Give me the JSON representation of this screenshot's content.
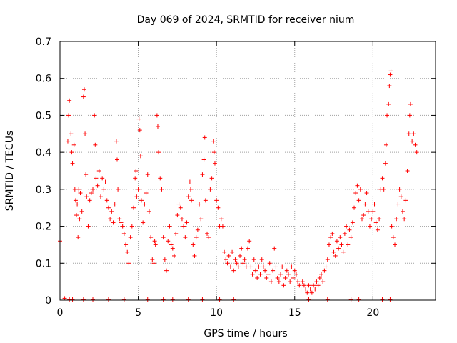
{
  "chart_data": {
    "type": "scatter",
    "title": "Day 069 of 2024, SRMTID for receiver nium",
    "xlabel": "GPS time / hours",
    "ylabel": "SRMTID / TECUs",
    "xlim": [
      0,
      24
    ],
    "ylim": [
      0,
      0.7
    ],
    "xticks": [
      0,
      5,
      10,
      15,
      20
    ],
    "yticks": [
      0,
      0.1,
      0.2,
      0.3,
      0.4,
      0.5,
      0.6,
      0.7
    ],
    "xtick_labels": [
      "0",
      "5",
      "10",
      "15",
      "20"
    ],
    "ytick_labels": [
      "0",
      "0.1",
      "0.2",
      "0.3",
      "0.4",
      "0.5",
      "0.6",
      "0.7"
    ],
    "grid": true,
    "marker": "+",
    "color": "#ff0000",
    "series": [
      {
        "name": "SRMTID",
        "points": [
          [
            0.0,
            0.16
          ],
          [
            0.3,
            0.005
          ],
          [
            0.5,
            0.43
          ],
          [
            0.55,
            0.5
          ],
          [
            0.6,
            0.54
          ],
          [
            0.7,
            0.45
          ],
          [
            0.75,
            0.4
          ],
          [
            0.8,
            0.37
          ],
          [
            0.9,
            0.42
          ],
          [
            0.95,
            0.3
          ],
          [
            1.0,
            0.27
          ],
          [
            1.05,
            0.23
          ],
          [
            1.1,
            0.26
          ],
          [
            1.15,
            0.17
          ],
          [
            1.2,
            0.3
          ],
          [
            1.25,
            0.22
          ],
          [
            1.3,
            0.29
          ],
          [
            1.4,
            0.24
          ],
          [
            1.5,
            0.55
          ],
          [
            1.55,
            0.57
          ],
          [
            1.6,
            0.45
          ],
          [
            1.65,
            0.34
          ],
          [
            1.7,
            0.28
          ],
          [
            1.8,
            0.2
          ],
          [
            1.9,
            0.27
          ],
          [
            2.0,
            0.29
          ],
          [
            2.1,
            0.3
          ],
          [
            2.2,
            0.5
          ],
          [
            2.25,
            0.42
          ],
          [
            2.3,
            0.33
          ],
          [
            2.4,
            0.31
          ],
          [
            2.5,
            0.35
          ],
          [
            2.6,
            0.28
          ],
          [
            2.7,
            0.33
          ],
          [
            2.8,
            0.3
          ],
          [
            2.9,
            0.32
          ],
          [
            3.0,
            0.27
          ],
          [
            3.1,
            0.25
          ],
          [
            3.2,
            0.22
          ],
          [
            3.3,
            0.24
          ],
          [
            3.4,
            0.21
          ],
          [
            3.5,
            0.26
          ],
          [
            3.6,
            0.43
          ],
          [
            3.65,
            0.38
          ],
          [
            3.7,
            0.3
          ],
          [
            3.8,
            0.22
          ],
          [
            3.9,
            0.21
          ],
          [
            4.0,
            0.2
          ],
          [
            4.1,
            0.18
          ],
          [
            4.2,
            0.15
          ],
          [
            4.3,
            0.13
          ],
          [
            4.4,
            0.1
          ],
          [
            4.5,
            0.17
          ],
          [
            4.6,
            0.2
          ],
          [
            4.7,
            0.25
          ],
          [
            4.8,
            0.33
          ],
          [
            4.85,
            0.35
          ],
          [
            4.9,
            0.28
          ],
          [
            5.0,
            0.3
          ],
          [
            5.05,
            0.49
          ],
          [
            5.1,
            0.46
          ],
          [
            5.15,
            0.39
          ],
          [
            5.2,
            0.27
          ],
          [
            5.3,
            0.21
          ],
          [
            5.4,
            0.26
          ],
          [
            5.5,
            0.29
          ],
          [
            5.6,
            0.34
          ],
          [
            5.7,
            0.24
          ],
          [
            5.8,
            0.17
          ],
          [
            5.9,
            0.11
          ],
          [
            6.0,
            0.1
          ],
          [
            6.05,
            0.16
          ],
          [
            6.1,
            0.15
          ],
          [
            6.2,
            0.5
          ],
          [
            6.25,
            0.47
          ],
          [
            6.3,
            0.4
          ],
          [
            6.4,
            0.33
          ],
          [
            6.5,
            0.3
          ],
          [
            6.6,
            0.17
          ],
          [
            6.7,
            0.11
          ],
          [
            6.8,
            0.08
          ],
          [
            6.9,
            0.16
          ],
          [
            7.0,
            0.2
          ],
          [
            7.1,
            0.15
          ],
          [
            7.2,
            0.14
          ],
          [
            7.3,
            0.12
          ],
          [
            7.4,
            0.18
          ],
          [
            7.5,
            0.23
          ],
          [
            7.6,
            0.26
          ],
          [
            7.7,
            0.25
          ],
          [
            7.8,
            0.22
          ],
          [
            7.9,
            0.2
          ],
          [
            8.0,
            0.17
          ],
          [
            8.1,
            0.21
          ],
          [
            8.2,
            0.28
          ],
          [
            8.3,
            0.32
          ],
          [
            8.35,
            0.3
          ],
          [
            8.4,
            0.27
          ],
          [
            8.5,
            0.15
          ],
          [
            8.6,
            0.12
          ],
          [
            8.7,
            0.17
          ],
          [
            8.8,
            0.19
          ],
          [
            8.9,
            0.26
          ],
          [
            9.0,
            0.22
          ],
          [
            9.1,
            0.34
          ],
          [
            9.2,
            0.38
          ],
          [
            9.25,
            0.44
          ],
          [
            9.3,
            0.27
          ],
          [
            9.4,
            0.18
          ],
          [
            9.5,
            0.17
          ],
          [
            9.6,
            0.3
          ],
          [
            9.7,
            0.33
          ],
          [
            9.8,
            0.43
          ],
          [
            9.85,
            0.4
          ],
          [
            9.9,
            0.37
          ],
          [
            10.0,
            0.27
          ],
          [
            10.1,
            0.25
          ],
          [
            10.2,
            0.2
          ],
          [
            10.3,
            0.22
          ],
          [
            10.4,
            0.2
          ],
          [
            10.5,
            0.13
          ],
          [
            10.6,
            0.11
          ],
          [
            10.7,
            0.1
          ],
          [
            10.8,
            0.12
          ],
          [
            10.9,
            0.09
          ],
          [
            11.0,
            0.13
          ],
          [
            11.1,
            0.08
          ],
          [
            11.2,
            0.11
          ],
          [
            11.3,
            0.1
          ],
          [
            11.4,
            0.09
          ],
          [
            11.5,
            0.12
          ],
          [
            11.6,
            0.14
          ],
          [
            11.7,
            0.1
          ],
          [
            11.8,
            0.11
          ],
          [
            11.9,
            0.09
          ],
          [
            12.0,
            0.14
          ],
          [
            12.1,
            0.16
          ],
          [
            12.2,
            0.09
          ],
          [
            12.3,
            0.07
          ],
          [
            12.4,
            0.11
          ],
          [
            12.5,
            0.08
          ],
          [
            12.6,
            0.06
          ],
          [
            12.7,
            0.09
          ],
          [
            12.8,
            0.07
          ],
          [
            12.9,
            0.11
          ],
          [
            13.0,
            0.09
          ],
          [
            13.1,
            0.08
          ],
          [
            13.2,
            0.06
          ],
          [
            13.3,
            0.07
          ],
          [
            13.4,
            0.1
          ],
          [
            13.5,
            0.05
          ],
          [
            13.6,
            0.08
          ],
          [
            13.7,
            0.14
          ],
          [
            13.8,
            0.09
          ],
          [
            13.9,
            0.06
          ],
          [
            14.0,
            0.05
          ],
          [
            14.1,
            0.07
          ],
          [
            14.2,
            0.09
          ],
          [
            14.3,
            0.04
          ],
          [
            14.4,
            0.06
          ],
          [
            14.5,
            0.08
          ],
          [
            14.6,
            0.07
          ],
          [
            14.7,
            0.05
          ],
          [
            14.8,
            0.09
          ],
          [
            14.9,
            0.06
          ],
          [
            15.0,
            0.08
          ],
          [
            15.1,
            0.07
          ],
          [
            15.2,
            0.05
          ],
          [
            15.3,
            0.04
          ],
          [
            15.4,
            0.03
          ],
          [
            15.5,
            0.05
          ],
          [
            15.6,
            0.04
          ],
          [
            15.7,
            0.03
          ],
          [
            15.8,
            0.02
          ],
          [
            15.9,
            0.04
          ],
          [
            16.0,
            0.03
          ],
          [
            16.1,
            0.02
          ],
          [
            16.2,
            0.04
          ],
          [
            16.3,
            0.03
          ],
          [
            16.4,
            0.05
          ],
          [
            16.5,
            0.04
          ],
          [
            16.6,
            0.06
          ],
          [
            16.7,
            0.07
          ],
          [
            16.8,
            0.05
          ],
          [
            16.9,
            0.08
          ],
          [
            17.0,
            0.09
          ],
          [
            17.1,
            0.11
          ],
          [
            17.2,
            0.15
          ],
          [
            17.3,
            0.17
          ],
          [
            17.4,
            0.18
          ],
          [
            17.5,
            0.13
          ],
          [
            17.6,
            0.12
          ],
          [
            17.7,
            0.16
          ],
          [
            17.8,
            0.14
          ],
          [
            17.9,
            0.17
          ],
          [
            18.0,
            0.15
          ],
          [
            18.1,
            0.13
          ],
          [
            18.2,
            0.18
          ],
          [
            18.3,
            0.2
          ],
          [
            18.4,
            0.15
          ],
          [
            18.5,
            0.19
          ],
          [
            18.6,
            0.17
          ],
          [
            18.7,
            0.21
          ],
          [
            18.8,
            0.25
          ],
          [
            18.9,
            0.29
          ],
          [
            19.0,
            0.31
          ],
          [
            19.1,
            0.27
          ],
          [
            19.2,
            0.3
          ],
          [
            19.3,
            0.22
          ],
          [
            19.4,
            0.23
          ],
          [
            19.5,
            0.26
          ],
          [
            19.6,
            0.29
          ],
          [
            19.7,
            0.24
          ],
          [
            19.8,
            0.2
          ],
          [
            19.9,
            0.22
          ],
          [
            20.0,
            0.24
          ],
          [
            20.1,
            0.26
          ],
          [
            20.2,
            0.21
          ],
          [
            20.3,
            0.19
          ],
          [
            20.4,
            0.22
          ],
          [
            20.5,
            0.3
          ],
          [
            20.6,
            0.33
          ],
          [
            20.7,
            0.3
          ],
          [
            20.8,
            0.37
          ],
          [
            20.85,
            0.42
          ],
          [
            20.9,
            0.5
          ],
          [
            21.0,
            0.53
          ],
          [
            21.05,
            0.58
          ],
          [
            21.1,
            0.61
          ],
          [
            21.15,
            0.62
          ],
          [
            21.2,
            0.2
          ],
          [
            21.3,
            0.17
          ],
          [
            21.4,
            0.15
          ],
          [
            21.5,
            0.22
          ],
          [
            21.6,
            0.26
          ],
          [
            21.7,
            0.3
          ],
          [
            21.8,
            0.28
          ],
          [
            21.9,
            0.24
          ],
          [
            22.0,
            0.22
          ],
          [
            22.1,
            0.27
          ],
          [
            22.2,
            0.35
          ],
          [
            22.3,
            0.45
          ],
          [
            22.35,
            0.5
          ],
          [
            22.4,
            0.53
          ],
          [
            22.5,
            0.43
          ],
          [
            22.6,
            0.45
          ],
          [
            22.7,
            0.42
          ],
          [
            22.8,
            0.4
          ],
          [
            0.6,
            0.002
          ],
          [
            0.8,
            0.002
          ],
          [
            1.5,
            0.002
          ],
          [
            2.1,
            0.002
          ],
          [
            3.1,
            0.002
          ],
          [
            4.1,
            0.002
          ],
          [
            5.6,
            0.002
          ],
          [
            6.6,
            0.002
          ],
          [
            7.2,
            0.002
          ],
          [
            8.2,
            0.002
          ],
          [
            9.1,
            0.002
          ],
          [
            10.2,
            0.002
          ],
          [
            11.1,
            0.002
          ],
          [
            15.9,
            0.002
          ],
          [
            17.1,
            0.002
          ],
          [
            18.6,
            0.002
          ],
          [
            19.1,
            0.002
          ],
          [
            20.6,
            0.002
          ],
          [
            21.1,
            0.002
          ]
        ]
      }
    ]
  }
}
